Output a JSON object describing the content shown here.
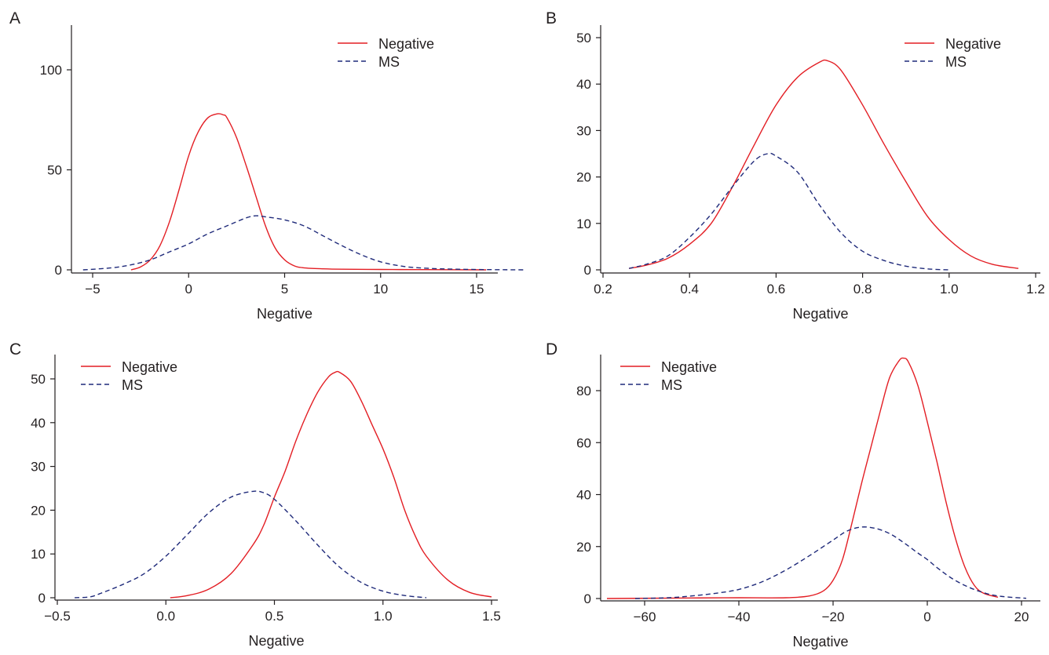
{
  "chart_data": [
    {
      "type": "line",
      "panel_label": "A",
      "title": "",
      "xlabel": "Negative",
      "ylabel": "",
      "xlim": [
        -6,
        17.5
      ],
      "ylim": [
        0,
        100
      ],
      "xticks": [
        -5,
        0,
        5,
        10,
        15
      ],
      "yticks": [
        0,
        50,
        100
      ],
      "legend_position": "top-right",
      "grid": false,
      "series": [
        {
          "name": "Negative",
          "color": "#e31e24",
          "style": "solid",
          "x": [
            -3,
            -2.5,
            -2,
            -1.5,
            -1,
            -0.5,
            0,
            0.5,
            1,
            1.5,
            1.8,
            2,
            2.5,
            3,
            3.5,
            4,
            4.5,
            5,
            5.5,
            6,
            7,
            8,
            10,
            12,
            15.5
          ],
          "y": [
            0,
            1.5,
            5,
            12,
            24,
            40,
            57,
            69,
            76,
            78,
            77.5,
            76,
            66,
            52,
            37,
            22,
            11,
            5,
            2,
            1,
            0.5,
            0.3,
            0.2,
            0.1,
            0
          ]
        },
        {
          "name": "MS",
          "color": "#1f2a7a",
          "style": "dashed",
          "x": [
            -5.5,
            -4,
            -3,
            -2,
            -1,
            0,
            1,
            2,
            3,
            3.5,
            4,
            5,
            6,
            7,
            8,
            9,
            10,
            11,
            12,
            14,
            17.5
          ],
          "y": [
            0,
            1,
            2.5,
            5,
            9,
            13,
            18,
            22,
            26,
            27,
            26.5,
            25,
            22,
            17,
            12,
            7.5,
            4,
            2,
            1,
            0.3,
            0
          ]
        }
      ]
    },
    {
      "type": "line",
      "panel_label": "B",
      "title": "",
      "xlabel": "Negative",
      "ylabel": "",
      "xlim": [
        0.2,
        1.2
      ],
      "ylim": [
        0,
        50
      ],
      "xticks": [
        0.2,
        0.4,
        0.6,
        0.8,
        1.0,
        1.2
      ],
      "ytick_labels": [
        "0",
        "10",
        "20",
        "30",
        "40",
        "50"
      ],
      "xtick_labels": [
        "0.2",
        "0.4",
        "0.6",
        "0.8",
        "1.0",
        "1.2"
      ],
      "legend_position": "top-right",
      "grid": false,
      "series": [
        {
          "name": "Negative",
          "color": "#e31e24",
          "style": "solid",
          "x": [
            0.26,
            0.3,
            0.35,
            0.4,
            0.45,
            0.5,
            0.55,
            0.6,
            0.65,
            0.7,
            0.72,
            0.75,
            0.8,
            0.85,
            0.9,
            0.95,
            1.0,
            1.05,
            1.1,
            1.16
          ],
          "y": [
            0.3,
            1,
            2.5,
            5.5,
            10,
            18,
            27,
            35.5,
            41.5,
            44.7,
            45,
            43,
            35.5,
            27,
            19,
            11.5,
            6.5,
            3,
            1.2,
            0.3
          ]
        },
        {
          "name": "MS",
          "color": "#1f2a7a",
          "style": "dashed",
          "x": [
            0.26,
            0.3,
            0.35,
            0.4,
            0.45,
            0.5,
            0.55,
            0.58,
            0.6,
            0.65,
            0.7,
            0.75,
            0.8,
            0.85,
            0.9,
            0.95,
            1.0
          ],
          "y": [
            0.3,
            1.2,
            3,
            7,
            12,
            18,
            23.5,
            25,
            24.5,
            21,
            14,
            8,
            4,
            2,
            0.8,
            0.2,
            0
          ]
        }
      ]
    },
    {
      "type": "line",
      "panel_label": "C",
      "title": "",
      "xlabel": "Negative",
      "ylabel": "",
      "xlim": [
        -0.52,
        1.52
      ],
      "ylim": [
        0,
        50
      ],
      "xtick_labels": [
        "−0.5",
        "0.0",
        "0.5",
        "1.0",
        "1.5"
      ],
      "xticks": [
        -0.5,
        0,
        0.5,
        1.0,
        1.5
      ],
      "yticks": [
        0,
        10,
        20,
        30,
        40,
        50
      ],
      "legend_position": "top-left",
      "grid": false,
      "series": [
        {
          "name": "Negative",
          "color": "#e31e24",
          "style": "solid",
          "x": [
            0.02,
            0.1,
            0.2,
            0.3,
            0.4,
            0.45,
            0.5,
            0.55,
            0.6,
            0.65,
            0.7,
            0.75,
            0.78,
            0.8,
            0.85,
            0.9,
            0.95,
            1.0,
            1.05,
            1.1,
            1.15,
            1.2,
            1.3,
            1.4,
            1.5
          ],
          "y": [
            0,
            0.5,
            2,
            5.5,
            12,
            16.5,
            23,
            29,
            36,
            42,
            47,
            50.5,
            51.5,
            51.5,
            49.5,
            45,
            39.5,
            34,
            27.5,
            20,
            14,
            9.5,
            4,
            1.2,
            0.2
          ]
        },
        {
          "name": "MS",
          "color": "#1f2a7a",
          "style": "dashed",
          "x": [
            -0.42,
            -0.35,
            -0.3,
            -0.2,
            -0.1,
            0.0,
            0.1,
            0.2,
            0.3,
            0.4,
            0.45,
            0.5,
            0.6,
            0.7,
            0.8,
            0.9,
            1.0,
            1.1,
            1.2
          ],
          "y": [
            0,
            0.2,
            1,
            3,
            5.5,
            9.5,
            14.5,
            19.5,
            23,
            24.3,
            24,
            22.5,
            17.5,
            12,
            7,
            3.5,
            1.5,
            0.5,
            0
          ]
        }
      ]
    },
    {
      "type": "line",
      "panel_label": "D",
      "title": "",
      "xlabel": "Negative",
      "ylabel": "",
      "xlim": [
        -68,
        22
      ],
      "ylim": [
        0,
        90
      ],
      "xtick_labels": [
        "−60",
        "−40",
        "−20",
        "0",
        "20"
      ],
      "xticks": [
        -60,
        -40,
        -20,
        0,
        20
      ],
      "yticks": [
        0,
        20,
        40,
        60,
        80
      ],
      "legend_position": "top-left",
      "grid": false,
      "series": [
        {
          "name": "Negative",
          "color": "#e31e24",
          "style": "solid",
          "x": [
            -68,
            -50,
            -40,
            -30,
            -25,
            -22,
            -20,
            -18,
            -16,
            -14,
            -12,
            -10,
            -8,
            -6,
            -5,
            -4,
            -2,
            0,
            2,
            4,
            6,
            8,
            10,
            12,
            15
          ],
          "y": [
            0,
            0.2,
            0.3,
            0.3,
            1,
            3,
            7,
            15,
            29,
            44,
            58,
            72,
            85,
            91.5,
            92.5,
            91,
            82,
            68,
            53,
            37,
            23,
            12,
            5,
            2,
            0.5
          ]
        },
        {
          "name": "MS",
          "color": "#1f2a7a",
          "style": "dashed",
          "x": [
            -62,
            -55,
            -50,
            -45,
            -40,
            -35,
            -30,
            -25,
            -20,
            -17,
            -14,
            -11,
            -8,
            -5,
            -2,
            0,
            2,
            5,
            8,
            11,
            14,
            17,
            21
          ],
          "y": [
            0,
            0.3,
            1,
            2,
            3.5,
            6.5,
            11,
            16.5,
            22.5,
            26,
            27.5,
            27,
            25,
            21.5,
            17.5,
            15,
            12,
            8,
            5,
            2.8,
            1.3,
            0.6,
            0.1
          ]
        }
      ]
    }
  ]
}
